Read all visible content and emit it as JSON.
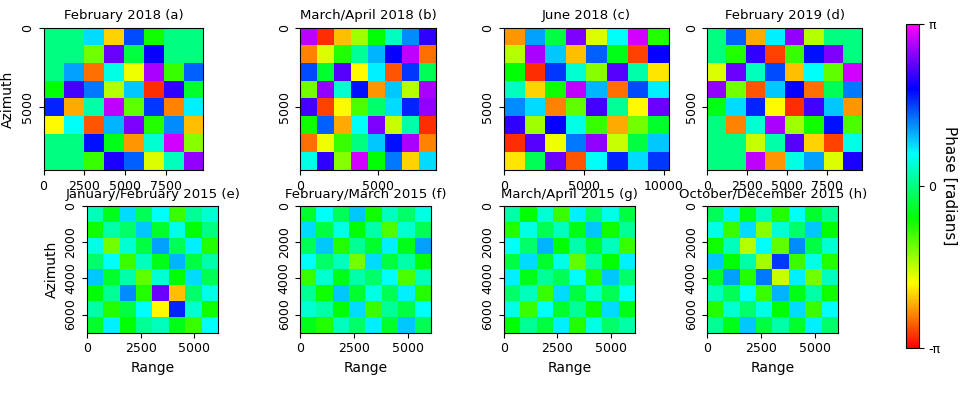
{
  "chart_data": [
    {
      "type": "heatmap",
      "title": "February 2018 (a)",
      "ylabel": "Azimuth",
      "xlim": [
        0,
        9800
      ],
      "ylim": [
        9000,
        0
      ],
      "xticks": [
        0,
        2500,
        5000,
        7500
      ],
      "yticks": [
        0,
        5000
      ],
      "cells": [
        [
          0,
          0,
          0.8,
          -2.1,
          1.5,
          -0.7,
          0,
          0
        ],
        [
          0,
          0,
          -1.2,
          2.4,
          -0.3,
          1.9,
          0,
          0
        ],
        [
          0,
          1.1,
          -2.6,
          0.5,
          -1.8,
          2.7,
          -0.9,
          1.4
        ],
        [
          -0.6,
          2.2,
          1.3,
          -1.5,
          0.9,
          -2.9,
          2.1,
          -0.4
        ],
        [
          1.7,
          -2.3,
          0.2,
          2.8,
          -1.1,
          1.6,
          -2.5,
          0.7
        ],
        [
          -1.9,
          0.6,
          -2.7,
          1.0,
          2.5,
          -0.8,
          1.2,
          -2.2
        ],
        [
          0,
          0,
          1.8,
          -0.5,
          -2.4,
          0.4,
          2.9,
          -1.3
        ],
        [
          0,
          0,
          -0.9,
          2.0,
          1.4,
          -1.7,
          0.3,
          2.6
        ]
      ]
    },
    {
      "type": "heatmap",
      "title": "March/April 2018 (b)",
      "xlim": [
        0,
        8700
      ],
      "ylim": [
        9000,
        0
      ],
      "xticks": [
        0,
        5000
      ],
      "yticks": [
        0,
        5000
      ],
      "cells": [
        [
          2.8,
          -2.9,
          -2.2,
          -1.4,
          -0.6,
          0.3,
          1.2,
          2.1
        ],
        [
          -2.5,
          -1.7,
          -0.8,
          0.1,
          1.0,
          1.9,
          2.8,
          -2.6
        ],
        [
          1.5,
          -0.4,
          2.3,
          -1.9,
          0.7,
          -2.7,
          1.6,
          -0.2
        ],
        [
          -1.2,
          2.6,
          0.4,
          1.8,
          -2.4,
          0.9,
          -1.5,
          2.7
        ],
        [
          2.2,
          -2.8,
          -1.9,
          -1.0,
          -0.1,
          0.8,
          1.7,
          2.6
        ],
        [
          -0.7,
          1.4,
          -2.3,
          0.6,
          2.5,
          -1.6,
          0.2,
          -2.9
        ],
        [
          -2.6,
          -1.8,
          -0.9,
          0.0,
          0.9,
          1.8,
          2.7,
          -2.5
        ],
        [
          0.5,
          2.1,
          -1.3,
          2.9,
          -0.6,
          1.3,
          -2.1,
          0.8
        ]
      ]
    },
    {
      "type": "heatmap",
      "title": "June 2018 (c)",
      "xlim": [
        0,
        10300
      ],
      "ylim": [
        9000,
        0
      ],
      "xticks": [
        0,
        5000,
        10000
      ],
      "yticks": [
        0,
        5000
      ],
      "cells": [
        [
          -2.4,
          1.1,
          -0.3,
          2.5,
          -1.7,
          0.6,
          2.9,
          -0.8
        ],
        [
          -1.5,
          2.7,
          0.9,
          -2.2,
          1.4,
          -0.5,
          -2.8,
          1.9
        ],
        [
          -0.6,
          -2.9,
          1.6,
          0.4,
          -1.3,
          2.3,
          0.2,
          -2.0
        ],
        [
          0.3,
          -2.1,
          -0.7,
          2.8,
          1.0,
          -2.6,
          1.5,
          0.7
        ],
        [
          1.2,
          0.8,
          -2.5,
          -1.1,
          2.2,
          0.1,
          -1.9,
          2.4
        ],
        [
          2.1,
          -1.4,
          1.9,
          0.5,
          -0.9,
          -2.3,
          -1.2,
          -0.4
        ],
        [
          -2.9,
          2.3,
          -1.8,
          1.3,
          2.6,
          -1.6,
          -0.3,
          0.9
        ],
        [
          -2.0,
          -0.2,
          2.4,
          -2.7,
          0.6,
          1.7,
          0.8,
          1.6
        ]
      ]
    },
    {
      "type": "heatmap",
      "title": "February 2019 (d)",
      "xlim": [
        0,
        9700
      ],
      "ylim": [
        9000,
        0
      ],
      "xticks": [
        0,
        2500,
        5000,
        7500
      ],
      "yticks": [
        0,
        5000
      ],
      "cells": [
        [
          0,
          1.4,
          -2.3,
          0.7,
          2.6,
          -1.5,
          0,
          0
        ],
        [
          0,
          -0.8,
          2.1,
          -2.8,
          -0.9,
          1.8,
          2.5,
          0
        ],
        [
          -1.7,
          2.4,
          0.3,
          1.5,
          -2.2,
          0.6,
          -1.1,
          2.9
        ],
        [
          2.6,
          -1.2,
          -2.7,
          0.9,
          1.9,
          -2.6,
          -0.2,
          1.3
        ],
        [
          -0.5,
          0.8,
          1.7,
          -1.9,
          -2.9,
          2.2,
          0.9,
          -2.4
        ],
        [
          0,
          -2.5,
          0.4,
          2.7,
          -1.4,
          -0.7,
          1.8,
          -1.0
        ],
        [
          0,
          0,
          -1.6,
          0.2,
          2.3,
          -2.1,
          -2.8,
          0.5
        ],
        [
          0,
          0,
          2.8,
          -2.4,
          0.5,
          1.1,
          -1.7,
          2.0
        ]
      ]
    },
    {
      "type": "heatmap",
      "title": "January/February 2015 (e)",
      "xlabel": "Range",
      "ylabel": "Azimuth",
      "xlim": [
        0,
        6100
      ],
      "ylim": [
        7000,
        0
      ],
      "xticks": [
        0,
        2500,
        5000
      ],
      "yticks": [
        0,
        2000,
        4000,
        6000
      ],
      "cells": [
        [
          0.3,
          -0.5,
          0.8,
          -0.2,
          0.6,
          -0.9,
          0.1,
          0.4
        ],
        [
          -0.7,
          0.2,
          -0.1,
          0.9,
          -0.4,
          0.5,
          -0.6,
          0.0
        ],
        [
          0.5,
          -1.2,
          0.4,
          -0.3,
          1.1,
          -0.2,
          0.7,
          -0.8
        ],
        [
          -0.1,
          0.6,
          -0.9,
          0.3,
          -0.5,
          1.0,
          -0.3,
          0.2
        ],
        [
          0.9,
          -0.4,
          0.2,
          -1.1,
          0.4,
          -0.6,
          0.8,
          -0.2
        ],
        [
          -0.6,
          0.1,
          1.2,
          -0.8,
          2.4,
          -2.2,
          -0.1,
          0.5
        ],
        [
          0.2,
          -0.8,
          -0.3,
          0.6,
          -1.9,
          1.7,
          0.4,
          -0.7
        ],
        [
          -0.4,
          0.7,
          -0.6,
          0.1,
          0.3,
          -0.5,
          -0.9,
          0.6
        ]
      ]
    },
    {
      "type": "heatmap",
      "title": "February/March 2015 (f)",
      "xlabel": "Range",
      "xlim": [
        0,
        6100
      ],
      "ylim": [
        7000,
        0
      ],
      "xticks": [
        0,
        2500,
        5000
      ],
      "yticks": [
        0,
        2000,
        4000,
        6000
      ],
      "cells": [
        [
          -0.4,
          0.6,
          -0.2,
          0.9,
          -0.7,
          0.3,
          -0.1,
          0.5
        ],
        [
          0.8,
          -0.3,
          0.5,
          -0.6,
          0.2,
          -1.0,
          0.4,
          -0.2
        ],
        [
          -0.2,
          0.9,
          -0.8,
          0.1,
          -0.4,
          0.7,
          -0.5,
          1.1
        ],
        [
          0.6,
          -0.1,
          0.3,
          -1.2,
          0.8,
          -0.3,
          0.2,
          -0.6
        ],
        [
          -0.9,
          0.4,
          -0.5,
          0.2,
          -0.1,
          0.6,
          -1.0,
          0.3
        ],
        [
          0.1,
          -0.7,
          0.9,
          -0.4,
          0.5,
          -0.2,
          0.7,
          -0.8
        ],
        [
          0.4,
          0.2,
          -0.6,
          0.8,
          -0.9,
          0.1,
          -0.3,
          0.6
        ],
        [
          -0.5,
          -0.8,
          0.3,
          -0.1,
          0.7,
          -0.4,
          0.9,
          -0.2
        ]
      ]
    },
    {
      "type": "heatmap",
      "title": "March/April 2015 (g)",
      "xlabel": "Range",
      "xlim": [
        0,
        6100
      ],
      "ylim": [
        7000,
        0
      ],
      "xticks": [
        0,
        2500,
        5000
      ],
      "yticks": [
        0,
        2000,
        4000,
        6000
      ],
      "cells": [
        [
          0.2,
          -0.6,
          0.4,
          -0.9,
          0.7,
          -0.1,
          0.5,
          -0.3
        ],
        [
          -0.8,
          0.5,
          -0.2,
          0.3,
          -0.5,
          0.9,
          -0.7,
          0.1
        ],
        [
          0.6,
          -0.1,
          1.0,
          -0.6,
          0.2,
          -0.4,
          0.3,
          -0.9
        ],
        [
          -0.3,
          0.8,
          -0.4,
          0.5,
          -1.1,
          0.2,
          -0.6,
          0.7
        ],
        [
          0.7,
          -0.5,
          0.1,
          -0.2,
          0.6,
          -0.8,
          0.9,
          -0.1
        ],
        [
          -0.1,
          0.3,
          -0.9,
          0.8,
          -0.3,
          0.4,
          -0.2,
          0.6
        ],
        [
          0.5,
          -0.9,
          0.6,
          -0.4,
          0.1,
          -0.7,
          0.8,
          -0.5
        ],
        [
          -0.6,
          0.1,
          -0.3,
          0.7,
          -0.8,
          0.5,
          -0.1,
          0.2
        ]
      ]
    },
    {
      "type": "heatmap",
      "title": "October/December 2015 (h)",
      "xlabel": "Range",
      "xlim": [
        0,
        6100
      ],
      "ylim": [
        7000,
        0
      ],
      "xticks": [
        0,
        2500,
        5000
      ],
      "yticks": [
        0,
        2000,
        4000,
        6000
      ],
      "cells": [
        [
          -0.2,
          0.7,
          -0.5,
          0.3,
          -0.8,
          0.6,
          -0.4,
          0.1
        ],
        [
          0.5,
          -0.9,
          0.8,
          -1.3,
          0.4,
          -0.1,
          0.9,
          -0.6
        ],
        [
          -0.7,
          0.3,
          -1.5,
          0.6,
          -1.1,
          1.2,
          -0.3,
          0.4
        ],
        [
          0.9,
          -0.6,
          0.2,
          -1.4,
          1.6,
          -0.9,
          0.5,
          -0.8
        ],
        [
          -0.4,
          1.1,
          -0.8,
          1.3,
          -1.6,
          0.7,
          -1.2,
          0.3
        ],
        [
          0.3,
          -0.2,
          0.6,
          -0.9,
          1.0,
          -0.5,
          0.2,
          -0.7
        ],
        [
          -0.8,
          0.4,
          -0.1,
          0.5,
          -0.6,
          0.8,
          -0.9,
          0.6
        ],
        [
          0.1,
          -0.5,
          0.9,
          -0.3,
          0.2,
          -0.4,
          0.7,
          -0.1
        ]
      ]
    }
  ],
  "colorbar": {
    "label": "Phase [radians]",
    "range": [
      -3.14159,
      3.14159
    ],
    "ticks": [
      {
        "value": -3.14159,
        "label": "-π"
      },
      {
        "value": 0,
        "label": "0"
      },
      {
        "value": 3.14159,
        "label": "π"
      }
    ]
  }
}
